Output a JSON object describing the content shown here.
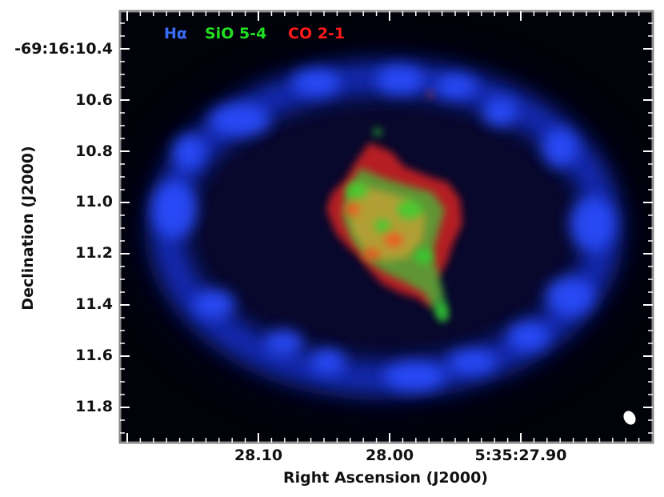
{
  "figure": {
    "legend": [
      {
        "label": "Hα",
        "color": "#3a6cf5"
      },
      {
        "label": "SiO 5-4",
        "color": "#22e022"
      },
      {
        "label": "CO 2-1",
        "color": "#ff1a1a"
      }
    ],
    "x_axis": {
      "title": "Right Ascension (J2000)",
      "ticks": [
        "28.10",
        "28.00",
        "5:35:27.90"
      ]
    },
    "y_axis": {
      "title": "Declination (J2000)",
      "ticks": [
        "-69:16:10.4",
        "10.6",
        "10.8",
        "11.0",
        "11.2",
        "11.4",
        "11.6",
        "11.8"
      ]
    },
    "colors": {
      "background": "#02020a",
      "ring": "#1a3cff",
      "frame": "#888888",
      "beam": "#ffffff"
    },
    "icons": [
      "beam-ellipse-icon"
    ]
  }
}
